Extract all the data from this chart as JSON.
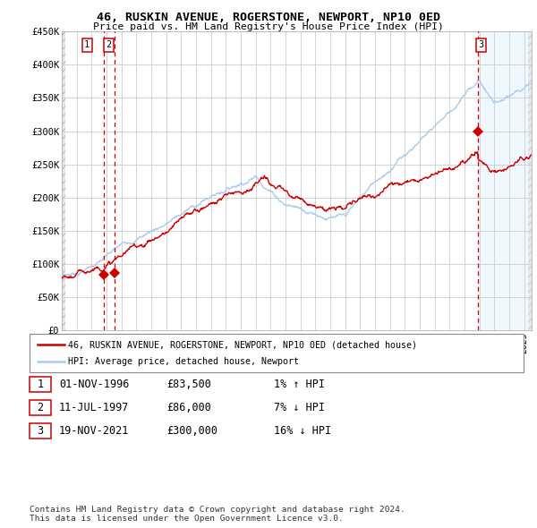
{
  "title": "46, RUSKIN AVENUE, ROGERSTONE, NEWPORT, NP10 0ED",
  "subtitle": "Price paid vs. HM Land Registry's House Price Index (HPI)",
  "ylabel_ticks": [
    "£0",
    "£50K",
    "£100K",
    "£150K",
    "£200K",
    "£250K",
    "£300K",
    "£350K",
    "£400K",
    "£450K"
  ],
  "ytick_values": [
    0,
    50000,
    100000,
    150000,
    200000,
    250000,
    300000,
    350000,
    400000,
    450000
  ],
  "hpi_color": "#aaccee",
  "price_color": "#cc0000",
  "marker_color": "#cc0000",
  "vline_color": "#cc0000",
  "shade_color": "#ddeeff",
  "grid_color": "#cccccc",
  "hatch_color": "#e0e0e0",
  "transactions": [
    {
      "date": "01-NOV-1996",
      "price": 83500,
      "label": "1",
      "pct": "1%",
      "dir": "↑"
    },
    {
      "date": "11-JUL-1997",
      "price": 86000,
      "label": "2",
      "pct": "7%",
      "dir": "↓"
    },
    {
      "date": "19-NOV-2021",
      "price": 300000,
      "label": "3",
      "pct": "16%",
      "dir": "↓"
    }
  ],
  "transaction_years": [
    1996.83,
    1997.53,
    2021.88
  ],
  "legend_line1": "46, RUSKIN AVENUE, ROGERSTONE, NEWPORT, NP10 0ED (detached house)",
  "legend_line2": "HPI: Average price, detached house, Newport",
  "footer": "Contains HM Land Registry data © Crown copyright and database right 2024.\nThis data is licensed under the Open Government Licence v3.0.",
  "xmin": 1994,
  "xmax": 2025.5,
  "ymin": 0,
  "ymax": 450000,
  "fig_width": 6.0,
  "fig_height": 5.9,
  "dpi": 100
}
